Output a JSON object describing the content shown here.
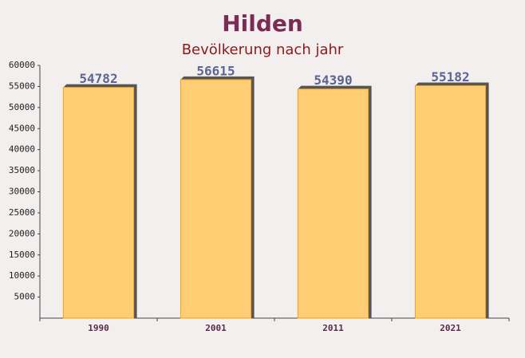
{
  "chart_data": {
    "type": "bar",
    "title": "Hilden",
    "subtitle": "Bevölkerung nach jahr",
    "categories": [
      "1990",
      "2001",
      "2011",
      "2021"
    ],
    "values": [
      54782,
      56615,
      54390,
      55182
    ],
    "color": "#ffc966",
    "ylim": [
      0,
      60000
    ],
    "yticks": [
      5000,
      10000,
      15000,
      20000,
      25000,
      30000,
      35000,
      40000,
      45000,
      50000,
      55000,
      60000
    ]
  }
}
